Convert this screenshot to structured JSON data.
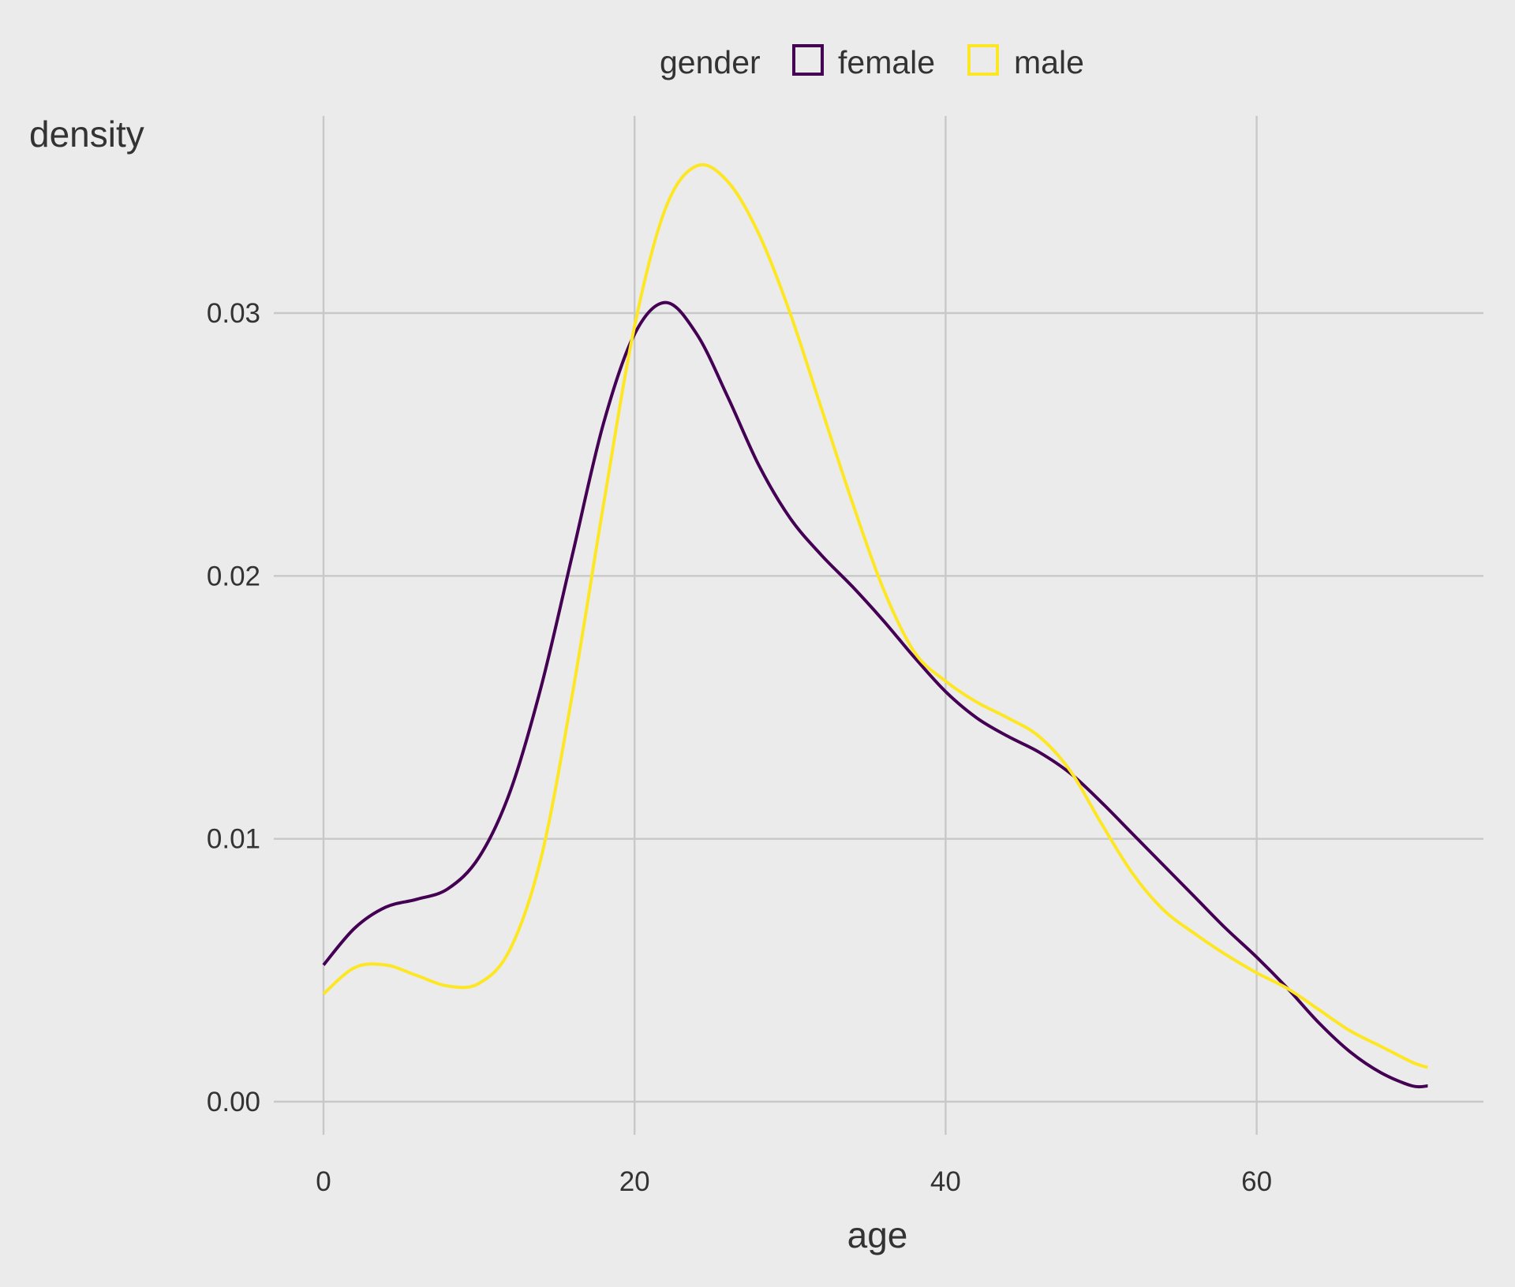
{
  "chart_data": {
    "type": "line",
    "title": "",
    "xlabel": "age",
    "ylabel": "density",
    "xlim": [
      0,
      71
    ],
    "ylim": [
      0,
      0.036
    ],
    "x_ticks": [
      0,
      20,
      40,
      60
    ],
    "x_tick_labels": [
      "0",
      "20",
      "40",
      "60"
    ],
    "y_ticks": [
      0,
      0.01,
      0.02,
      0.03
    ],
    "y_tick_labels": [
      "0.00",
      "0.01",
      "0.02",
      "0.03"
    ],
    "grid": true,
    "legend": {
      "title": "gender",
      "placement": "top",
      "entries": [
        "female",
        "male"
      ]
    },
    "x": [
      0,
      2,
      4,
      6,
      8,
      10,
      12,
      14,
      16,
      18,
      20,
      22,
      24,
      26,
      28,
      30,
      32,
      34,
      36,
      38,
      40,
      42,
      44,
      46,
      48,
      50,
      52,
      54,
      56,
      58,
      60,
      62,
      64,
      66,
      68,
      70,
      71
    ],
    "series": [
      {
        "name": "female",
        "color": "#440154",
        "values": [
          0.0052,
          0.0066,
          0.0074,
          0.0077,
          0.0081,
          0.0093,
          0.0118,
          0.0158,
          0.0208,
          0.0258,
          0.0292,
          0.0304,
          0.0292,
          0.0268,
          0.0242,
          0.0222,
          0.0208,
          0.0196,
          0.0183,
          0.0169,
          0.0156,
          0.0146,
          0.0139,
          0.0133,
          0.0125,
          0.0114,
          0.0102,
          0.009,
          0.0078,
          0.0066,
          0.0055,
          0.0043,
          0.003,
          0.0019,
          0.0011,
          0.0006,
          0.0006
        ]
      },
      {
        "name": "male",
        "color": "#fde725",
        "values": [
          0.0041,
          0.0051,
          0.0052,
          0.0048,
          0.0044,
          0.0045,
          0.0058,
          0.0093,
          0.0155,
          0.0227,
          0.0295,
          0.034,
          0.0356,
          0.035,
          0.033,
          0.03,
          0.0264,
          0.0228,
          0.0195,
          0.0171,
          0.016,
          0.0152,
          0.0146,
          0.0139,
          0.0126,
          0.0106,
          0.0087,
          0.0073,
          0.0064,
          0.0056,
          0.0049,
          0.0043,
          0.0035,
          0.0027,
          0.0021,
          0.0015,
          0.0013
        ]
      }
    ]
  }
}
